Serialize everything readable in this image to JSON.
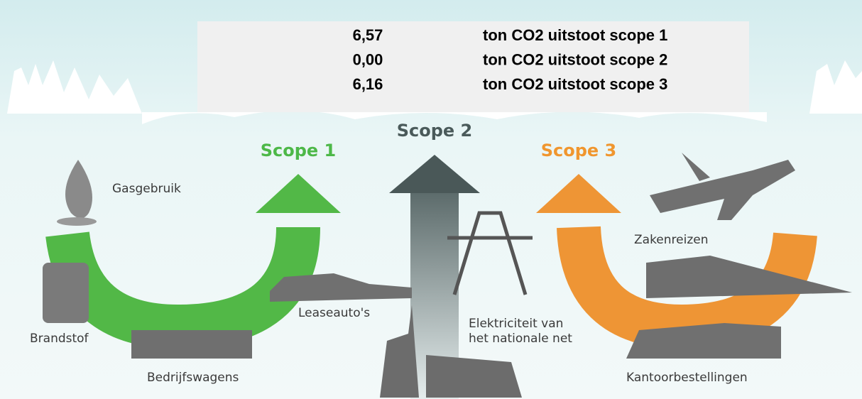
{
  "summary": {
    "rows": [
      {
        "value": "6,57",
        "label": "ton CO2 uitstoot scope 1"
      },
      {
        "value": "0,00",
        "label": "ton CO2 uitstoot scope 2"
      },
      {
        "value": "6,16",
        "label": "ton CO2 uitstoot scope 3"
      }
    ]
  },
  "scopes": [
    "Scope 1",
    "Scope 2",
    "Scope 3"
  ],
  "items": {
    "gas": "Gasgebruik",
    "fuel": "Brandstof",
    "trucks": "Bedrijfswagens",
    "lease": "Leaseauto's",
    "power": [
      "Elektriciteit van",
      "het nationale net"
    ],
    "travel": "Zakenreizen",
    "office": "Kantoorbestellingen"
  }
}
